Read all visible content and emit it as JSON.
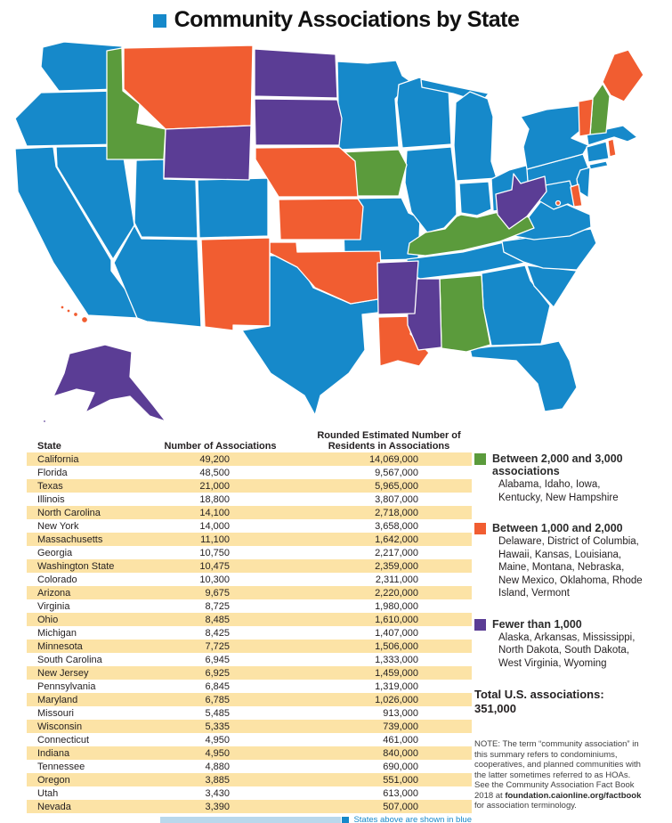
{
  "title": "Community Associations by State",
  "colors": {
    "blue": "#1689ca",
    "green": "#5b9b3c",
    "orange": "#f15d31",
    "purple": "#5b3d95",
    "row_highlight": "#fce3a6",
    "footnote_blue": "#1689ca",
    "bottom_strip": "#b9d8ec"
  },
  "map": {
    "default_color": "blue",
    "categories": {
      "green": [
        "ID",
        "IA",
        "KY",
        "AL",
        "NH"
      ],
      "orange": [
        "MT",
        "NE",
        "KS",
        "OK",
        "NM",
        "LA",
        "ME",
        "VT",
        "DE",
        "RI",
        "HI",
        "DC"
      ],
      "purple": [
        "ND",
        "SD",
        "WY",
        "WV",
        "MS",
        "AR",
        "AK"
      ]
    }
  },
  "chart_data": {
    "type": "choropleth+table",
    "title": "Community Associations by State",
    "total_us_associations": "351,000",
    "table": {
      "headers": [
        "State",
        "Number of Associations",
        "Rounded Estimated Number of Residents in Associations"
      ],
      "rows": [
        [
          "California",
          "49,200",
          "14,069,000"
        ],
        [
          "Florida",
          "48,500",
          "9,567,000"
        ],
        [
          "Texas",
          "21,000",
          "5,965,000"
        ],
        [
          "Illinois",
          "18,800",
          "3,807,000"
        ],
        [
          "North Carolina",
          "14,100",
          "2,718,000"
        ],
        [
          "New York",
          "14,000",
          "3,658,000"
        ],
        [
          "Massachusetts",
          "11,100",
          "1,642,000"
        ],
        [
          "Georgia",
          "10,750",
          "2,217,000"
        ],
        [
          "Washington State",
          "10,475",
          "2,359,000"
        ],
        [
          "Colorado",
          "10,300",
          "2,311,000"
        ],
        [
          "Arizona",
          "9,675",
          "2,220,000"
        ],
        [
          "Virginia",
          "8,725",
          "1,980,000"
        ],
        [
          "Ohio",
          "8,485",
          "1,610,000"
        ],
        [
          "Michigan",
          "8,425",
          "1,407,000"
        ],
        [
          "Minnesota",
          "7,725",
          "1,506,000"
        ],
        [
          "South Carolina",
          "6,945",
          "1,333,000"
        ],
        [
          "New Jersey",
          "6,925",
          "1,459,000"
        ],
        [
          "Pennsylvania",
          "6,845",
          "1,319,000"
        ],
        [
          "Maryland",
          "6,785",
          "1,026,000"
        ],
        [
          "Missouri",
          "5,485",
          "913,000"
        ],
        [
          "Wisconsin",
          "5,335",
          "739,000"
        ],
        [
          "Connecticut",
          "4,950",
          "461,000"
        ],
        [
          "Indiana",
          "4,950",
          "840,000"
        ],
        [
          "Tennessee",
          "4,880",
          "690,000"
        ],
        [
          "Oregon",
          "3,885",
          "551,000"
        ],
        [
          "Utah",
          "3,430",
          "613,000"
        ],
        [
          "Nevada",
          "3,390",
          "507,000"
        ]
      ]
    }
  },
  "footnote": "States above are shown in blue",
  "legend": {
    "items": [
      {
        "color": "green",
        "title": "Between 2,000 and 3,000 associations",
        "states": "Alabama, Idaho, Iowa, Kentucky, New Hampshire"
      },
      {
        "color": "orange",
        "title": "Between 1,000 and 2,000",
        "states": "Delaware, District of Columbia, Hawaii, Kansas, Louisiana, Maine, Montana, Nebraska, New Mexico, Oklahoma, Rhode Island, Vermont"
      },
      {
        "color": "purple",
        "title": "Fewer than 1,000",
        "states": "Alaska, Arkansas, Mississippi, North Dakota, South Dakota, West Virginia, Wyoming"
      }
    ],
    "total_label": "Total U.S. associations:",
    "total_value": "351,000",
    "note_prefix": "NOTE: The term “community association” in this summary refers to condominiums, cooperatives, and planned communities with the latter sometimes referred to as HOAs.  See the Community Association Fact Book 2018 at ",
    "note_link": "foundation.caionline.org/factbook",
    "note_suffix": " for association terminology."
  }
}
